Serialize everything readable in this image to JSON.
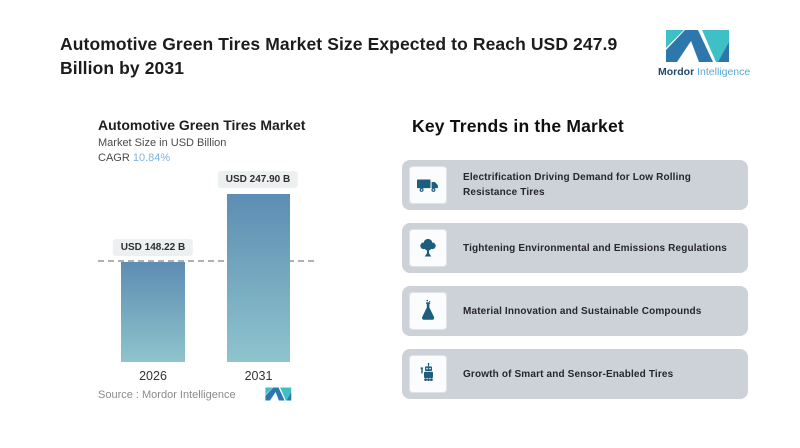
{
  "header": {
    "title": "Automotive Green Tires Market Size Expected to Reach USD 247.9 Billion by 2031",
    "brand": {
      "word1": "Mordor",
      "word2": "Intelligence"
    }
  },
  "chart": {
    "title": "Automotive Green Tires Market",
    "subtitle": "Market Size in USD Billion",
    "cagr_label": "CAGR",
    "cagr_value": "10.84%",
    "source": "Source :  Mordor Intelligence"
  },
  "chart_data": {
    "type": "bar",
    "title": "Automotive Green Tires Market",
    "subtitle": "Market Size in USD Billion",
    "unit": "USD Billion",
    "cagr_percent": 10.84,
    "categories": [
      "2026",
      "2031"
    ],
    "values": [
      148.22,
      247.9
    ],
    "bar_labels": [
      "USD 148.22 B",
      "USD 247.90 B"
    ],
    "reference_line": 148.22,
    "bar_gradient": [
      "#5d8db3",
      "#8ec4cc"
    ],
    "grid": false,
    "legend": false
  },
  "trends": {
    "heading": "Key Trends in the Market",
    "items": [
      {
        "icon": "truck-icon",
        "text": "Electrification Driving Demand for Low Rolling Resistance Tires"
      },
      {
        "icon": "tree-icon",
        "text": "Tightening Environmental and Emissions Regulations"
      },
      {
        "icon": "flask-icon",
        "text": "Material Innovation and Sustainable Compounds"
      },
      {
        "icon": "robot-icon",
        "text": "Growth of Smart and Sensor-Enabled Tires"
      }
    ]
  },
  "colors": {
    "accent_blue": "#7fb3da",
    "icon_dark_teal": "#1d5d7d",
    "card_bg": "#cdd2d9",
    "logo_dark_blue": "#2e77ad",
    "logo_teal": "#3fc0c6",
    "bar_top": "#5d8db3",
    "bar_bottom": "#8ec4cc"
  }
}
